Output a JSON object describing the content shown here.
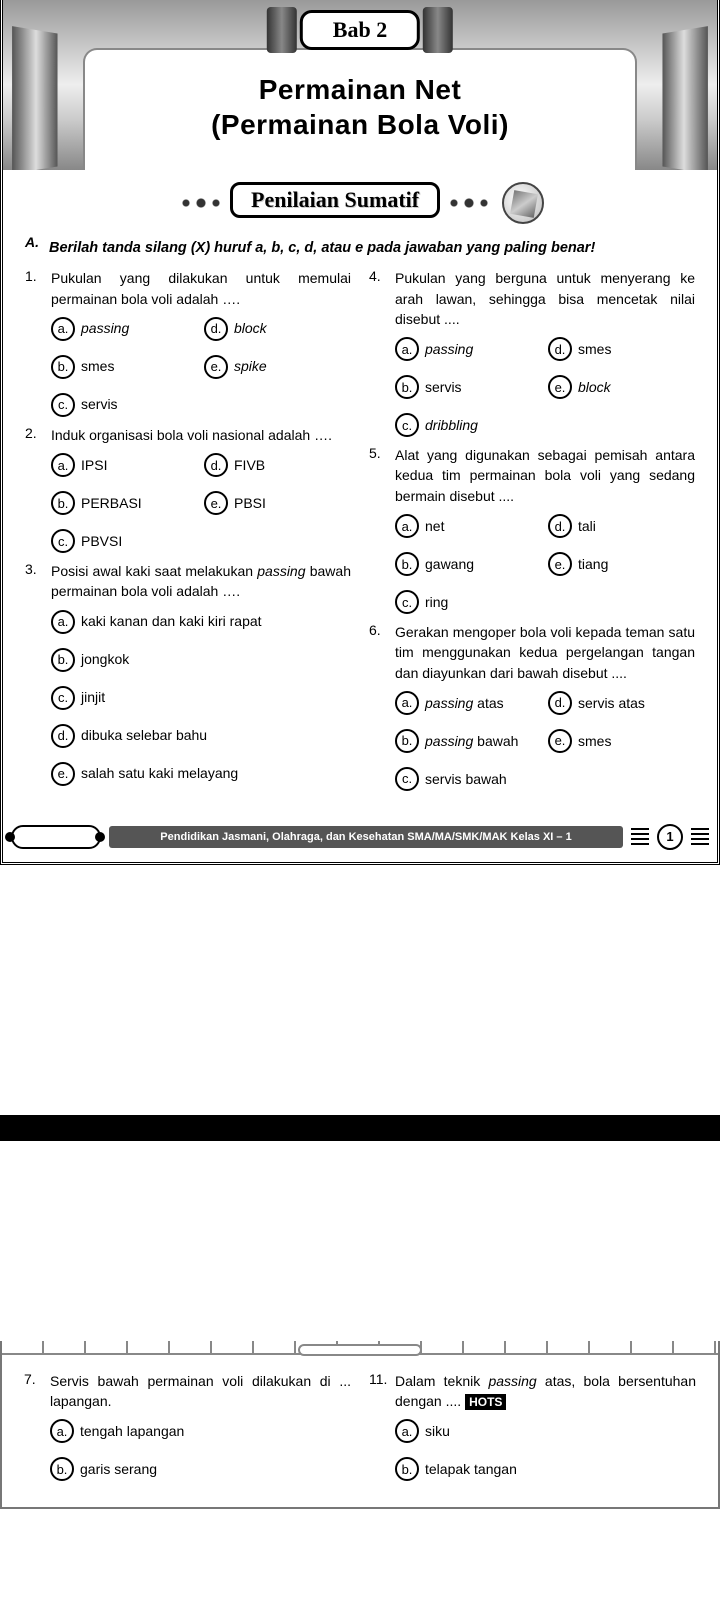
{
  "chapter_label": "Bab 2",
  "title_line1": "Permainan Net",
  "title_line2": "(Permainan Bola Voli)",
  "assessment_title": "Penilaian Sumatif",
  "section_label": "A.",
  "instruction": "Berilah tanda silang (X) huruf a, b, c, d, atau e pada jawaban yang paling benar!",
  "questions_p1_left": [
    {
      "num": "1.",
      "text": "Pukulan yang dilakukan untuk memulai permainan bola voli adalah ….",
      "layout": "two",
      "opts": [
        {
          "k": "a.",
          "t": "passing",
          "it": true
        },
        {
          "k": "d.",
          "t": "block",
          "it": true
        },
        {
          "k": "b.",
          "t": "smes"
        },
        {
          "k": "e.",
          "t": "spike",
          "it": true
        },
        {
          "k": "c.",
          "t": "servis"
        }
      ]
    },
    {
      "num": "2.",
      "text": "Induk organisasi bola voli nasional adalah ….",
      "layout": "two",
      "opts": [
        {
          "k": "a.",
          "t": "IPSI"
        },
        {
          "k": "d.",
          "t": "FIVB"
        },
        {
          "k": "b.",
          "t": "PERBASI"
        },
        {
          "k": "e.",
          "t": "PBSI"
        },
        {
          "k": "c.",
          "t": "PBVSI"
        }
      ]
    },
    {
      "num": "3.",
      "text_html": "Posisi awal kaki saat melakukan <em class='term'>passing</em> bawah permainan bola voli adalah ….",
      "layout": "one",
      "opts": [
        {
          "k": "a.",
          "t": "kaki kanan dan kaki kiri rapat"
        },
        {
          "k": "b.",
          "t": "jongkok"
        },
        {
          "k": "c.",
          "t": "jinjit"
        },
        {
          "k": "d.",
          "t": "dibuka selebar bahu"
        },
        {
          "k": "e.",
          "t": "salah satu kaki melayang"
        }
      ]
    }
  ],
  "questions_p1_right": [
    {
      "num": "4.",
      "text": "Pukulan yang berguna untuk menyerang ke arah lawan, sehingga bisa mencetak nilai disebut ....",
      "layout": "two",
      "opts": [
        {
          "k": "a.",
          "t": "passing",
          "it": true
        },
        {
          "k": "d.",
          "t": "smes"
        },
        {
          "k": "b.",
          "t": "servis"
        },
        {
          "k": "e.",
          "t": "block",
          "it": true
        },
        {
          "k": "c.",
          "t": "dribbling",
          "it": true
        }
      ]
    },
    {
      "num": "5.",
      "text": "Alat yang digunakan sebagai pemisah antara kedua tim permainan bola voli yang sedang bermain disebut ....",
      "layout": "two",
      "opts": [
        {
          "k": "a.",
          "t": "net"
        },
        {
          "k": "d.",
          "t": "tali"
        },
        {
          "k": "b.",
          "t": "gawang"
        },
        {
          "k": "e.",
          "t": "tiang"
        },
        {
          "k": "c.",
          "t": "ring"
        }
      ]
    },
    {
      "num": "6.",
      "text": "Gerakan mengoper bola voli kepada teman satu tim menggunakan kedua pergelangan tangan dan diayunkan dari bawah disebut ....",
      "layout": "two",
      "opts": [
        {
          "k": "a.",
          "t_html": "<em class='term'>passing</em> atas"
        },
        {
          "k": "d.",
          "t": "servis atas"
        },
        {
          "k": "b.",
          "t_html": "<em class='term'>passing</em> bawah"
        },
        {
          "k": "e.",
          "t": "smes"
        },
        {
          "k": "c.",
          "t": "servis bawah"
        }
      ]
    }
  ],
  "footer_text": "Pendidikan Jasmani, Olahraga, dan Kesehatan SMA/MA/SMK/MAK Kelas XI – 1",
  "footer_page": "1",
  "questions_p2_left": [
    {
      "num": "7.",
      "text": "Servis bawah permainan voli dilakukan di ... lapangan.",
      "layout": "one",
      "opts": [
        {
          "k": "a.",
          "t": "tengah lapangan"
        },
        {
          "k": "b.",
          "t": "garis serang"
        }
      ]
    }
  ],
  "questions_p2_right": [
    {
      "num": "11.",
      "text_html": "Dalam teknik <em class='term'>passing</em> atas, bola bersentuhan dengan .... <span class='hots'>HOTS</span>",
      "layout": "one",
      "opts": [
        {
          "k": "a.",
          "t": "siku"
        },
        {
          "k": "b.",
          "t": "telapak tangan"
        }
      ]
    }
  ],
  "hots_label": "HOTS"
}
